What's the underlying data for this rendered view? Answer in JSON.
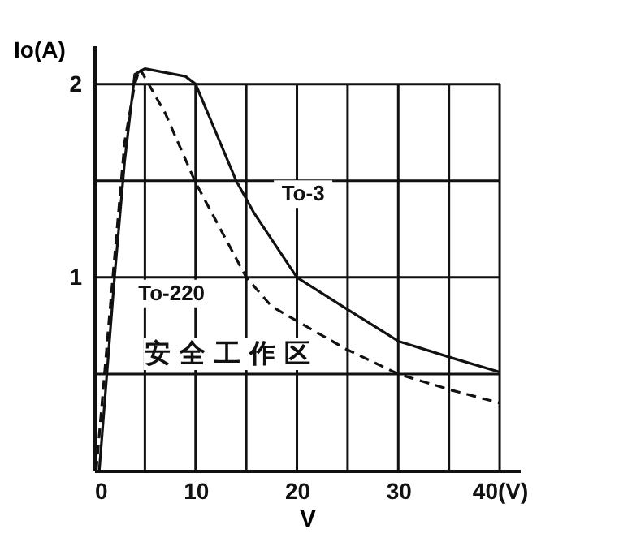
{
  "chart_data": {
    "type": "line",
    "xlabel": "V",
    "ylabel": "Io(A)",
    "xlim": [
      0,
      42
    ],
    "ylim": [
      0,
      2.2
    ],
    "xticks": [
      0,
      {
        "value": 5,
        "label": null
      },
      10,
      {
        "value": 15,
        "label": null
      },
      20,
      {
        "value": 25,
        "label": null
      },
      30,
      {
        "value": 35,
        "label": null
      },
      {
        "value": 40,
        "label": "40(V)"
      }
    ],
    "yticks": [
      {
        "value": 0.5,
        "label": null
      },
      1,
      {
        "value": 1.5,
        "label": null
      },
      2
    ],
    "grid": true,
    "marker": "none",
    "annotations": [
      "安 全 工 作 区"
    ],
    "series": [
      {
        "name": "To-3",
        "color": "#111111",
        "line_style": "solid",
        "x": [
          0.5,
          2,
          3,
          4,
          5,
          9,
          10,
          12,
          14,
          15.8,
          20,
          24.8,
          30,
          35.5,
          40
        ],
        "values": [
          0,
          1.0,
          1.6,
          2.05,
          2.08,
          2.04,
          2.0,
          1.75,
          1.5,
          1.33,
          1.0,
          0.84,
          0.67,
          0.58,
          0.51
        ]
      },
      {
        "name": "To-220",
        "color": "#111111",
        "line_style": "dashed",
        "x": [
          0.2,
          1.5,
          3,
          4,
          4.5,
          7,
          10,
          15,
          17.5,
          24.8,
          30,
          35,
          40
        ],
        "values": [
          0,
          0.8,
          1.7,
          2.0,
          2.08,
          1.85,
          1.49,
          1.0,
          0.85,
          0.63,
          0.5,
          0.42,
          0.35
        ]
      }
    ]
  }
}
